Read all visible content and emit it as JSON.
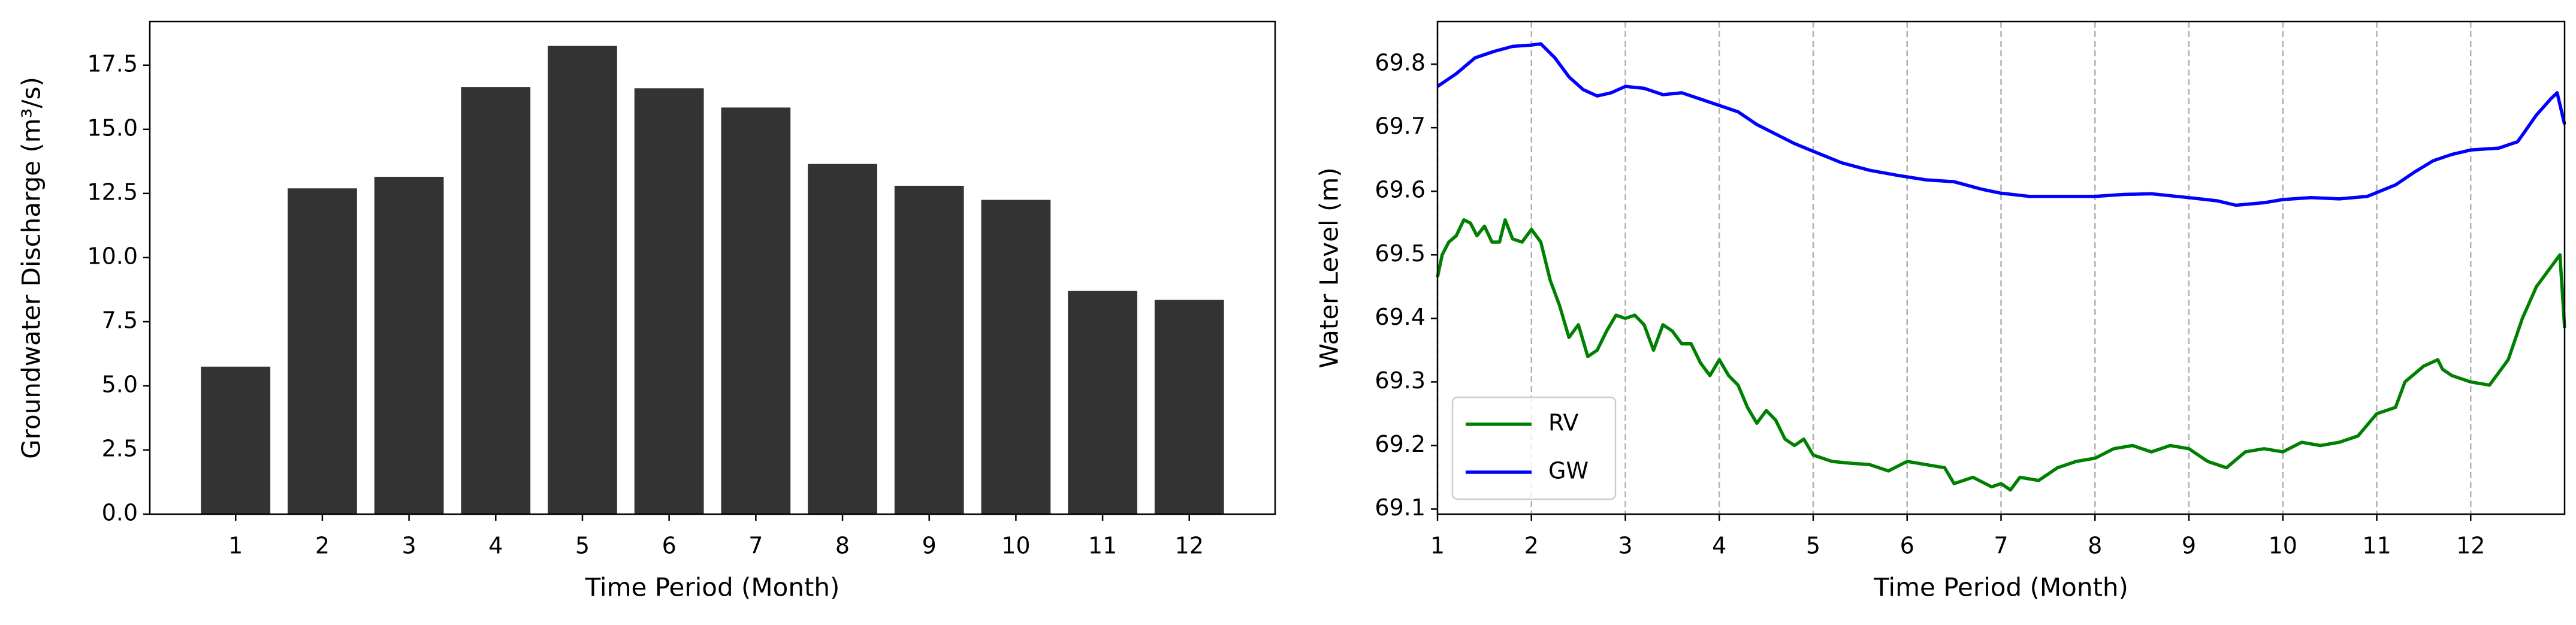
{
  "chart_data": [
    {
      "type": "bar",
      "xlabel": "Time Period (Month)",
      "ylabel": "Groundwater Discharge (m³/s)",
      "categories": [
        "1",
        "2",
        "3",
        "4",
        "5",
        "6",
        "7",
        "8",
        "9",
        "10",
        "11",
        "12"
      ],
      "values": [
        5.75,
        12.7,
        13.15,
        16.65,
        18.25,
        16.6,
        15.85,
        13.65,
        12.8,
        12.25,
        8.7,
        8.35
      ],
      "color": "#333333",
      "ylim": [
        0,
        19.2
      ],
      "yticks": [
        {
          "value": 0,
          "label": "0.0"
        },
        2.5,
        {
          "value": 5,
          "label": "5.0"
        },
        7.5,
        {
          "value": 10,
          "label": "10.0"
        },
        12.5,
        {
          "value": 15,
          "label": "15.0"
        },
        17.5
      ],
      "grid": false
    },
    {
      "type": "line",
      "xlabel": "Time Period (Month)",
      "ylabel": "Water Level (m)",
      "xlim": [
        1,
        13.0
      ],
      "xticks": [
        1,
        2,
        3,
        4,
        5,
        6,
        7,
        8,
        9,
        10,
        11,
        12
      ],
      "ylim": [
        69.092,
        69.867
      ],
      "yticks": [
        69.1,
        69.2,
        69.3,
        69.4,
        69.5,
        69.6,
        69.7,
        69.8
      ],
      "grid": "x",
      "legend": "lower left",
      "series": [
        {
          "name": "RV",
          "color": "#008000",
          "x": [
            1.0,
            1.05,
            1.12,
            1.2,
            1.28,
            1.35,
            1.42,
            1.5,
            1.58,
            1.66,
            1.72,
            1.8,
            1.9,
            2.0,
            2.1,
            2.2,
            2.3,
            2.4,
            2.5,
            2.6,
            2.7,
            2.8,
            2.9,
            3.0,
            3.1,
            3.2,
            3.3,
            3.4,
            3.5,
            3.6,
            3.7,
            3.8,
            3.9,
            4.0,
            4.1,
            4.2,
            4.3,
            4.4,
            4.5,
            4.6,
            4.7,
            4.8,
            4.9,
            5.0,
            5.2,
            5.4,
            5.6,
            5.8,
            6.0,
            6.2,
            6.4,
            6.5,
            6.7,
            6.9,
            7.0,
            7.1,
            7.2,
            7.4,
            7.6,
            7.8,
            8.0,
            8.2,
            8.4,
            8.6,
            8.8,
            9.0,
            9.2,
            9.4,
            9.6,
            9.8,
            10.0,
            10.2,
            10.4,
            10.6,
            10.8,
            11.0,
            11.2,
            11.3,
            11.5,
            11.65,
            11.7,
            11.8,
            12.0,
            12.2,
            12.4,
            12.55,
            12.7,
            12.85,
            12.95,
            13.0
          ],
          "values": [
            69.465,
            69.5,
            69.52,
            69.53,
            69.555,
            69.55,
            69.53,
            69.545,
            69.52,
            69.52,
            69.555,
            69.525,
            69.52,
            69.54,
            69.52,
            69.46,
            69.42,
            69.37,
            69.39,
            69.34,
            69.35,
            69.38,
            69.405,
            69.4,
            69.405,
            69.39,
            69.35,
            69.39,
            69.38,
            69.36,
            69.36,
            69.33,
            69.31,
            69.335,
            69.31,
            69.295,
            69.26,
            69.235,
            69.255,
            69.24,
            69.21,
            69.2,
            69.21,
            69.185,
            69.175,
            69.172,
            69.17,
            69.16,
            69.175,
            69.17,
            69.165,
            69.14,
            69.15,
            69.135,
            69.14,
            69.13,
            69.15,
            69.145,
            69.165,
            69.175,
            69.18,
            69.195,
            69.2,
            69.19,
            69.2,
            69.195,
            69.175,
            69.165,
            69.19,
            69.195,
            69.19,
            69.205,
            69.2,
            69.205,
            69.215,
            69.25,
            69.26,
            69.3,
            69.325,
            69.335,
            69.32,
            69.31,
            69.3,
            69.295,
            69.335,
            69.4,
            69.45,
            69.48,
            69.5,
            69.385
          ]
        },
        {
          "name": "GW",
          "color": "#0000ff",
          "x": [
            1.0,
            1.2,
            1.4,
            1.6,
            1.8,
            2.0,
            2.1,
            2.25,
            2.4,
            2.55,
            2.7,
            2.85,
            3.0,
            3.2,
            3.4,
            3.6,
            3.8,
            4.0,
            4.2,
            4.4,
            4.6,
            4.8,
            5.0,
            5.3,
            5.6,
            5.9,
            6.2,
            6.5,
            6.8,
            7.0,
            7.3,
            7.6,
            8.0,
            8.3,
            8.6,
            9.0,
            9.3,
            9.5,
            9.8,
            10.0,
            10.3,
            10.6,
            10.9,
            11.2,
            11.4,
            11.6,
            11.8,
            12.0,
            12.3,
            12.5,
            12.7,
            12.85,
            12.92,
            13.0
          ],
          "values": [
            69.765,
            69.785,
            69.81,
            69.82,
            69.828,
            69.83,
            69.832,
            69.81,
            69.78,
            69.76,
            69.75,
            69.755,
            69.765,
            69.762,
            69.752,
            69.755,
            69.745,
            69.735,
            69.725,
            69.705,
            69.69,
            69.675,
            69.663,
            69.645,
            69.633,
            69.625,
            69.618,
            69.615,
            69.603,
            69.597,
            69.592,
            69.592,
            69.592,
            69.595,
            69.596,
            69.59,
            69.585,
            69.578,
            69.582,
            69.587,
            69.59,
            69.588,
            69.592,
            69.61,
            69.63,
            69.648,
            69.658,
            69.665,
            69.668,
            69.678,
            69.72,
            69.745,
            69.755,
            69.705
          ]
        }
      ]
    }
  ]
}
